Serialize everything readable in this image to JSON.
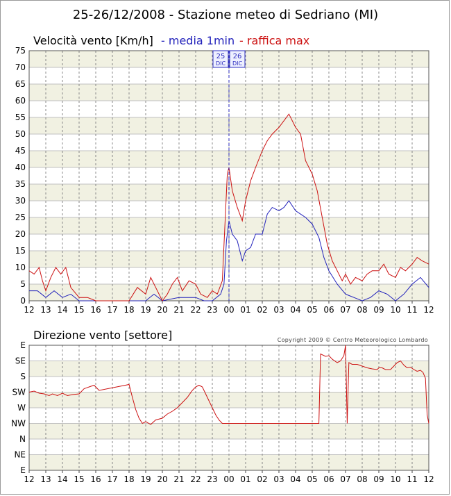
{
  "title": "25-26/12/2008 - Stazione meteo di Sedriano (MI)",
  "copyright": "Copyright 2009 © Centro Meteorologico Lombardo",
  "colors": {
    "media": "#2222bb",
    "raffica": "#cc1111",
    "band": "#f1f1e2",
    "grid": "#c0c0c0",
    "dash": "#888888"
  },
  "chart_data": [
    {
      "type": "line",
      "title": "Velocità vento [Km/h]",
      "legend": [
        "- media 1min",
        "- raffica max"
      ],
      "x_tick_labels": [
        "12",
        "13",
        "14",
        "15",
        "16",
        "17",
        "18",
        "19",
        "20",
        "21",
        "22",
        "23",
        "00",
        "01",
        "02",
        "03",
        "04",
        "05",
        "06",
        "07",
        "08",
        "09",
        "10",
        "11",
        "12"
      ],
      "ylim": [
        0,
        75
      ],
      "y_ticks": [
        0,
        5,
        10,
        15,
        20,
        25,
        30,
        35,
        40,
        45,
        50,
        55,
        60,
        65,
        70,
        75
      ],
      "day_marker": {
        "x_index": 12,
        "labels": [
          {
            "day": "25",
            "month": "DIC"
          },
          {
            "day": "26",
            "month": "DIC"
          }
        ]
      },
      "series": [
        {
          "name": "media 1min",
          "color": "#2222bb",
          "points": [
            [
              0,
              3
            ],
            [
              0.5,
              3
            ],
            [
              1,
              1
            ],
            [
              1.5,
              3
            ],
            [
              2,
              1
            ],
            [
              2.5,
              2
            ],
            [
              3,
              0
            ],
            [
              4,
              0
            ],
            [
              6,
              0
            ],
            [
              7,
              0
            ],
            [
              7.5,
              2
            ],
            [
              8,
              0
            ],
            [
              9,
              1
            ],
            [
              10,
              1
            ],
            [
              10.5,
              0
            ],
            [
              11,
              0
            ],
            [
              11.5,
              2
            ],
            [
              11.7,
              5
            ],
            [
              11.85,
              18
            ],
            [
              12,
              24
            ],
            [
              12.2,
              20
            ],
            [
              12.5,
              18
            ],
            [
              12.8,
              12
            ],
            [
              13,
              15
            ],
            [
              13.3,
              16
            ],
            [
              13.6,
              20
            ],
            [
              14,
              20
            ],
            [
              14.3,
              26
            ],
            [
              14.6,
              28
            ],
            [
              15,
              27
            ],
            [
              15.3,
              28
            ],
            [
              15.6,
              30
            ],
            [
              16,
              27
            ],
            [
              16.3,
              26
            ],
            [
              16.6,
              25
            ],
            [
              17,
              23
            ],
            [
              17.4,
              19
            ],
            [
              17.7,
              13
            ],
            [
              18,
              9
            ],
            [
              18.5,
              5
            ],
            [
              19,
              2
            ],
            [
              19.5,
              1
            ],
            [
              20,
              0
            ],
            [
              20.5,
              1
            ],
            [
              21,
              3
            ],
            [
              21.5,
              2
            ],
            [
              22,
              0
            ],
            [
              22.5,
              2
            ],
            [
              23,
              5
            ],
            [
              23.5,
              7
            ],
            [
              24,
              4
            ]
          ]
        },
        {
          "name": "raffica max",
          "color": "#cc1111",
          "points": [
            [
              0,
              9
            ],
            [
              0.3,
              8
            ],
            [
              0.6,
              10
            ],
            [
              0.8,
              6
            ],
            [
              1,
              3
            ],
            [
              1.3,
              7
            ],
            [
              1.6,
              10
            ],
            [
              1.9,
              8
            ],
            [
              2.2,
              10
            ],
            [
              2.5,
              4
            ],
            [
              3,
              1
            ],
            [
              3.5,
              1
            ],
            [
              4,
              0
            ],
            [
              6,
              0
            ],
            [
              6.5,
              4
            ],
            [
              7,
              2
            ],
            [
              7.3,
              7
            ],
            [
              7.6,
              4
            ],
            [
              8,
              0
            ],
            [
              8.3,
              2
            ],
            [
              8.6,
              5
            ],
            [
              8.9,
              7
            ],
            [
              9.2,
              3
            ],
            [
              9.6,
              6
            ],
            [
              10,
              5
            ],
            [
              10.3,
              2
            ],
            [
              10.7,
              1
            ],
            [
              11,
              3
            ],
            [
              11.3,
              2
            ],
            [
              11.6,
              6
            ],
            [
              11.75,
              22
            ],
            [
              11.9,
              38
            ],
            [
              12,
              40
            ],
            [
              12.2,
              33
            ],
            [
              12.5,
              28
            ],
            [
              12.8,
              24
            ],
            [
              13,
              30
            ],
            [
              13.3,
              36
            ],
            [
              13.6,
              40
            ],
            [
              14,
              45
            ],
            [
              14.3,
              48
            ],
            [
              14.6,
              50
            ],
            [
              15,
              52
            ],
            [
              15.3,
              54
            ],
            [
              15.6,
              56
            ],
            [
              16,
              52
            ],
            [
              16.3,
              50
            ],
            [
              16.6,
              42
            ],
            [
              17,
              38
            ],
            [
              17.3,
              33
            ],
            [
              17.6,
              25
            ],
            [
              17.9,
              17
            ],
            [
              18.2,
              12
            ],
            [
              18.5,
              9
            ],
            [
              18.8,
              6
            ],
            [
              19,
              8
            ],
            [
              19.3,
              5
            ],
            [
              19.6,
              7
            ],
            [
              20,
              6
            ],
            [
              20.3,
              8
            ],
            [
              20.6,
              9
            ],
            [
              21,
              9
            ],
            [
              21.3,
              11
            ],
            [
              21.6,
              8
            ],
            [
              22,
              7
            ],
            [
              22.3,
              10
            ],
            [
              22.6,
              9
            ],
            [
              23,
              11
            ],
            [
              23.3,
              13
            ],
            [
              23.6,
              12
            ],
            [
              24,
              11
            ]
          ]
        }
      ]
    },
    {
      "type": "line",
      "title": "Direzione vento [settore]",
      "x_tick_labels": [
        "12",
        "13",
        "14",
        "15",
        "16",
        "17",
        "18",
        "19",
        "20",
        "21",
        "22",
        "23",
        "00",
        "01",
        "02",
        "03",
        "04",
        "05",
        "06",
        "07",
        "08",
        "09",
        "10",
        "11",
        "12"
      ],
      "y_labels": [
        "E",
        "NE",
        "N",
        "NW",
        "W",
        "SW",
        "S",
        "SE",
        "E"
      ],
      "ylim_deg": [
        90,
        450
      ],
      "series": [
        {
          "name": "direzione",
          "color": "#cc1111",
          "points": [
            [
              0,
              315
            ],
            [
              0.3,
              318
            ],
            [
              0.6,
              312
            ],
            [
              0.9,
              310
            ],
            [
              1.2,
              305
            ],
            [
              1.4,
              310
            ],
            [
              1.7,
              305
            ],
            [
              2,
              312
            ],
            [
              2.3,
              305
            ],
            [
              2.6,
              308
            ],
            [
              3,
              310
            ],
            [
              3.3,
              325
            ],
            [
              3.6,
              330
            ],
            [
              3.9,
              335
            ],
            [
              4,
              330
            ],
            [
              4.2,
              320
            ],
            [
              6,
              337
            ],
            [
              6.2,
              300
            ],
            [
              6.4,
              265
            ],
            [
              6.6,
              240
            ],
            [
              6.8,
              225
            ],
            [
              7,
              230
            ],
            [
              7.3,
              222
            ],
            [
              7.6,
              235
            ],
            [
              8,
              240
            ],
            [
              8.3,
              252
            ],
            [
              8.6,
              260
            ],
            [
              8.9,
              270
            ],
            [
              9.2,
              285
            ],
            [
              9.5,
              300
            ],
            [
              9.8,
              320
            ],
            [
              10,
              330
            ],
            [
              10.2,
              335
            ],
            [
              10.4,
              330
            ],
            [
              10.6,
              310
            ],
            [
              10.8,
              290
            ],
            [
              11,
              270
            ],
            [
              11.2,
              250
            ],
            [
              11.4,
              235
            ],
            [
              11.6,
              225
            ],
            [
              11.8,
              225
            ],
            [
              12,
              225
            ],
            [
              14,
              225
            ],
            [
              16,
              225
            ],
            [
              17.2,
              225
            ],
            [
              17.4,
              225
            ],
            [
              17.5,
              425
            ],
            [
              17.8,
              418
            ],
            [
              18,
              420
            ],
            [
              18.2,
              410
            ],
            [
              18.5,
              400
            ],
            [
              18.7,
              405
            ],
            [
              18.9,
              420
            ],
            [
              19,
              450
            ],
            [
              19.1,
              225
            ],
            [
              19.2,
              400
            ],
            [
              19.4,
              395
            ],
            [
              19.7,
              395
            ],
            [
              20,
              390
            ],
            [
              20.3,
              385
            ],
            [
              20.6,
              382
            ],
            [
              20.9,
              380
            ],
            [
              21,
              385
            ],
            [
              21.2,
              385
            ],
            [
              21.4,
              380
            ],
            [
              21.7,
              380
            ],
            [
              21.9,
              390
            ],
            [
              22.1,
              400
            ],
            [
              22.3,
              405
            ],
            [
              22.5,
              393
            ],
            [
              22.7,
              385
            ],
            [
              22.9,
              387
            ],
            [
              23.1,
              380
            ],
            [
              23.3,
              375
            ],
            [
              23.5,
              378
            ],
            [
              23.65,
              372
            ],
            [
              23.8,
              355
            ],
            [
              23.9,
              250
            ],
            [
              24,
              225
            ]
          ]
        }
      ]
    }
  ]
}
